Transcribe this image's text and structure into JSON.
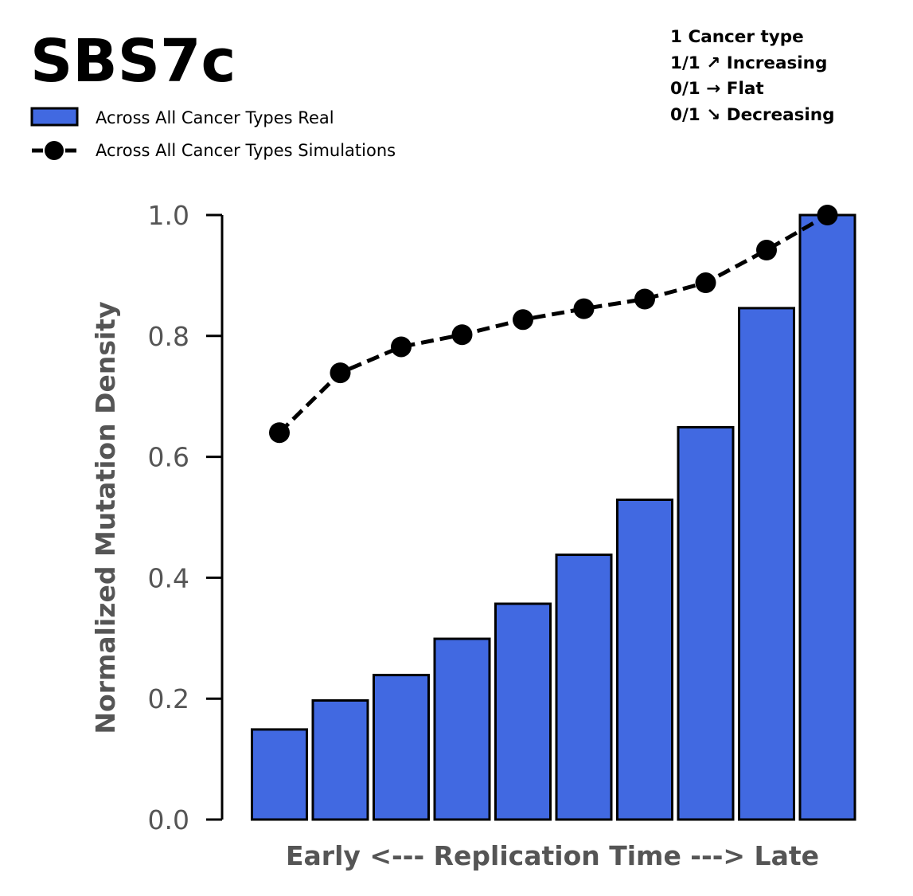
{
  "title": "SBS7c",
  "legend": {
    "real_label": "Across All Cancer Types Real",
    "sim_label": "Across All Cancer Types Simulations"
  },
  "stats": [
    "1 Cancer type",
    "1/1 ↗ Increasing",
    "0/1 → Flat",
    "0/1 ↘ Decreasing"
  ],
  "colors": {
    "bar_fill": "#4169E1",
    "bar_edge": "#000000",
    "sim_line": "#000000",
    "axis_text": "#555555"
  },
  "chart_data": {
    "type": "bar",
    "title": "SBS7c",
    "xlabel": "Early <--- Replication Time ---> Late",
    "ylabel": "Normalized Mutation Density",
    "ylim": [
      0,
      1.0
    ],
    "yticks": [
      "0.0",
      "0.2",
      "0.4",
      "0.6",
      "0.8",
      "1.0"
    ],
    "grid": false,
    "legend_position": "top-left",
    "series": [
      {
        "name": "Across All Cancer Types Real",
        "kind": "bar",
        "values": [
          0.149,
          0.197,
          0.239,
          0.299,
          0.357,
          0.438,
          0.529,
          0.649,
          0.846,
          1.0
        ]
      },
      {
        "name": "Across All Cancer Types Simulations",
        "kind": "line",
        "style": "dashed-with-markers",
        "values": [
          0.64,
          0.739,
          0.782,
          0.802,
          0.827,
          0.845,
          0.861,
          0.888,
          0.942,
          1.0
        ]
      }
    ]
  }
}
